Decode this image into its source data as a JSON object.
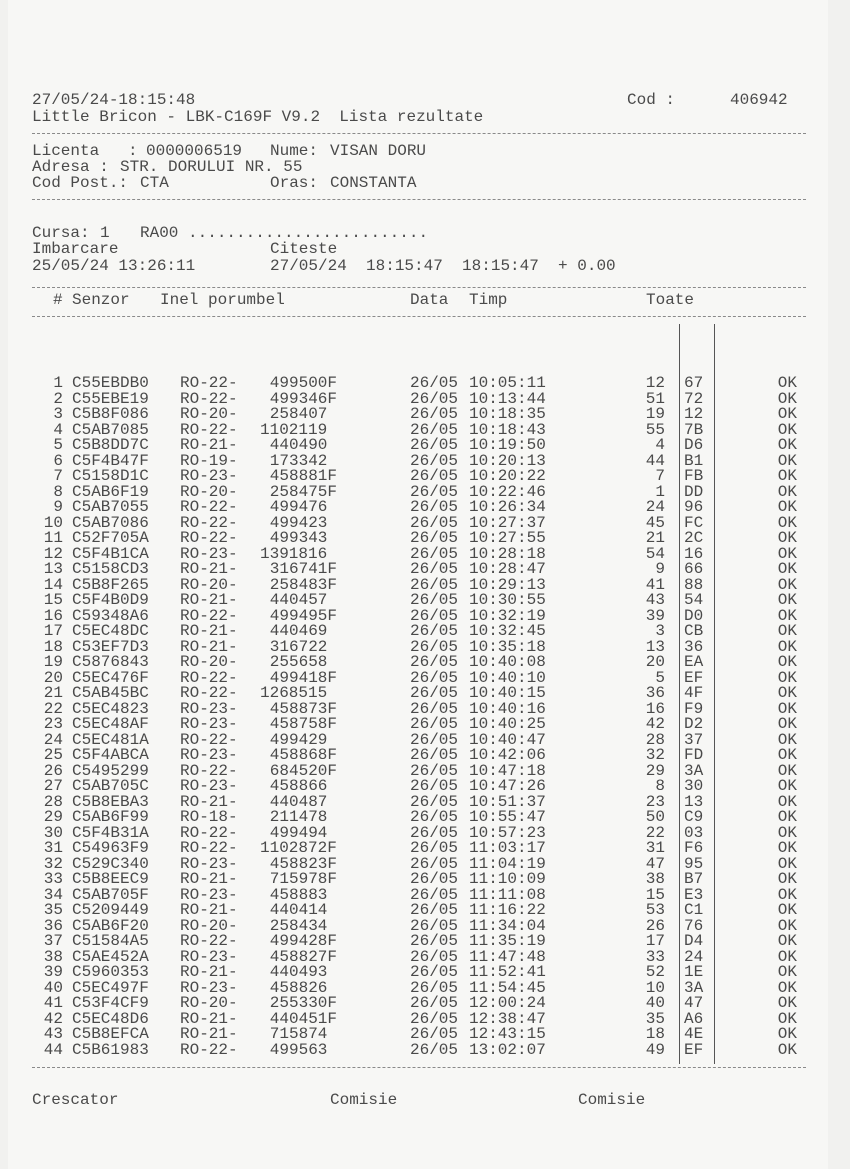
{
  "header": {
    "datetime": "27/05/24-18:15:48",
    "cod_label": "Cod :",
    "cod_value": "406942",
    "title": "Little Bricon - LBK-C169F V9.2  Lista rezultate"
  },
  "owner": {
    "licenta_label": "Licenta   :",
    "licenta": "0000006519",
    "nume_label": "Nume:",
    "nume": "VISAN DORU",
    "adresa_label": "Adresa :",
    "adresa": "STR. DORULUI NR. 55",
    "cod_post_label": "Cod Post.:",
    "cod_post": "CTA",
    "oras_label": "Oras:",
    "oras": "CONSTANTA"
  },
  "race": {
    "cursa_label": "Cursa:",
    "cursa": "1",
    "code": "RA00 .........................",
    "imbarcare_label": "Imbarcare",
    "citeste_label": "Citeste",
    "imbarcare": "25/05/24 13:26:11",
    "citeste": "27/05/24  18:15:47  18:15:47  + 0.00"
  },
  "table": {
    "headers": {
      "num": "#",
      "senzor": "Senzor",
      "inel": "Inel porumbel",
      "data": "Data",
      "timp": "Timp",
      "toate": "Toate"
    },
    "rows": [
      [
        "1",
        "C55EBDB0",
        "RO-22-",
        "499500F",
        "26/05",
        "10:05:11",
        "12",
        "67",
        "OK"
      ],
      [
        "2",
        "C55EBE19",
        "RO-22-",
        "499346F",
        "26/05",
        "10:13:44",
        "51",
        "72",
        "OK"
      ],
      [
        "3",
        "C5B8F086",
        "RO-20-",
        "258407",
        "26/05",
        "10:18:35",
        "19",
        "12",
        "OK"
      ],
      [
        "4",
        "C5AB7085",
        "RO-22-",
        "1102119",
        "26/05",
        "10:18:43",
        "55",
        "7B",
        "OK"
      ],
      [
        "5",
        "C5B8DD7C",
        "RO-21-",
        "440490",
        "26/05",
        "10:19:50",
        "4",
        "D6",
        "OK"
      ],
      [
        "6",
        "C5F4B47F",
        "RO-19-",
        "173342",
        "26/05",
        "10:20:13",
        "44",
        "B1",
        "OK"
      ],
      [
        "7",
        "C5158D1C",
        "RO-23-",
        "458881F",
        "26/05",
        "10:20:22",
        "7",
        "FB",
        "OK"
      ],
      [
        "8",
        "C5AB6F19",
        "RO-20-",
        "258475F",
        "26/05",
        "10:22:46",
        "1",
        "DD",
        "OK"
      ],
      [
        "9",
        "C5AB7055",
        "RO-22-",
        "499476",
        "26/05",
        "10:26:34",
        "24",
        "96",
        "OK"
      ],
      [
        "10",
        "C5AB7086",
        "RO-22-",
        "499423",
        "26/05",
        "10:27:37",
        "45",
        "FC",
        "OK"
      ],
      [
        "11",
        "C52F705A",
        "RO-22-",
        "499343",
        "26/05",
        "10:27:55",
        "21",
        "2C",
        "OK"
      ],
      [
        "12",
        "C5F4B1CA",
        "RO-23-",
        "1391816",
        "26/05",
        "10:28:18",
        "54",
        "16",
        "OK"
      ],
      [
        "13",
        "C5158CD3",
        "RO-21-",
        "316741F",
        "26/05",
        "10:28:47",
        "9",
        "66",
        "OK"
      ],
      [
        "14",
        "C5B8F265",
        "RO-20-",
        "258483F",
        "26/05",
        "10:29:13",
        "41",
        "88",
        "OK"
      ],
      [
        "15",
        "C5F4B0D9",
        "RO-21-",
        "440457",
        "26/05",
        "10:30:55",
        "43",
        "54",
        "OK"
      ],
      [
        "16",
        "C59348A6",
        "RO-22-",
        "499495F",
        "26/05",
        "10:32:19",
        "39",
        "D0",
        "OK"
      ],
      [
        "17",
        "C5EC48DC",
        "RO-21-",
        "440469",
        "26/05",
        "10:32:45",
        "3",
        "CB",
        "OK"
      ],
      [
        "18",
        "C53EF7D3",
        "RO-21-",
        "316722",
        "26/05",
        "10:35:18",
        "13",
        "36",
        "OK"
      ],
      [
        "19",
        "C5876843",
        "RO-20-",
        "255658",
        "26/05",
        "10:40:08",
        "20",
        "EA",
        "OK"
      ],
      [
        "20",
        "C5EC476F",
        "RO-22-",
        "499418F",
        "26/05",
        "10:40:10",
        "5",
        "EF",
        "OK"
      ],
      [
        "21",
        "C5AB45BC",
        "RO-22-",
        "1268515",
        "26/05",
        "10:40:15",
        "36",
        "4F",
        "OK"
      ],
      [
        "22",
        "C5EC4823",
        "RO-23-",
        "458873F",
        "26/05",
        "10:40:16",
        "16",
        "F9",
        "OK"
      ],
      [
        "23",
        "C5EC48AF",
        "RO-23-",
        "458758F",
        "26/05",
        "10:40:25",
        "42",
        "D2",
        "OK"
      ],
      [
        "24",
        "C5EC481A",
        "RO-22-",
        "499429",
        "26/05",
        "10:40:47",
        "28",
        "37",
        "OK"
      ],
      [
        "25",
        "C5F4ABCA",
        "RO-23-",
        "458868F",
        "26/05",
        "10:42:06",
        "32",
        "FD",
        "OK"
      ],
      [
        "26",
        "C5495299",
        "RO-22-",
        "684520F",
        "26/05",
        "10:47:18",
        "29",
        "3A",
        "OK"
      ],
      [
        "27",
        "C5AB705C",
        "RO-23-",
        "458866",
        "26/05",
        "10:47:26",
        "8",
        "30",
        "OK"
      ],
      [
        "28",
        "C5B8EBA3",
        "RO-21-",
        "440487",
        "26/05",
        "10:51:37",
        "23",
        "13",
        "OK"
      ],
      [
        "29",
        "C5AB6F99",
        "RO-18-",
        "211478",
        "26/05",
        "10:55:47",
        "50",
        "C9",
        "OK"
      ],
      [
        "30",
        "C5F4B31A",
        "RO-22-",
        "499494",
        "26/05",
        "10:57:23",
        "22",
        "03",
        "OK"
      ],
      [
        "31",
        "C54963F9",
        "RO-22-",
        "1102872F",
        "26/05",
        "11:03:17",
        "31",
        "F6",
        "OK"
      ],
      [
        "32",
        "C529C340",
        "RO-23-",
        "458823F",
        "26/05",
        "11:04:19",
        "47",
        "95",
        "OK"
      ],
      [
        "33",
        "C5B8EEC9",
        "RO-21-",
        "715978F",
        "26/05",
        "11:10:09",
        "38",
        "B7",
        "OK"
      ],
      [
        "34",
        "C5AB705F",
        "RO-23-",
        "458883",
        "26/05",
        "11:11:08",
        "15",
        "E3",
        "OK"
      ],
      [
        "35",
        "C5209449",
        "RO-21-",
        "440414",
        "26/05",
        "11:16:22",
        "53",
        "C1",
        "OK"
      ],
      [
        "36",
        "C5AB6F20",
        "RO-20-",
        "258434",
        "26/05",
        "11:34:04",
        "26",
        "76",
        "OK"
      ],
      [
        "37",
        "C51584A5",
        "RO-22-",
        "499428F",
        "26/05",
        "11:35:19",
        "17",
        "D4",
        "OK"
      ],
      [
        "38",
        "C5AE452A",
        "RO-23-",
        "458827F",
        "26/05",
        "11:47:48",
        "33",
        "24",
        "OK"
      ],
      [
        "39",
        "C5960353",
        "RO-21-",
        "440493",
        "26/05",
        "11:52:41",
        "52",
        "1E",
        "OK"
      ],
      [
        "40",
        "C5EC497F",
        "RO-23-",
        "458826",
        "26/05",
        "11:54:45",
        "10",
        "3A",
        "OK"
      ],
      [
        "41",
        "C53F4CF9",
        "RO-20-",
        "255330F",
        "26/05",
        "12:00:24",
        "40",
        "47",
        "OK"
      ],
      [
        "42",
        "C5EC48D6",
        "RO-21-",
        "440451F",
        "26/05",
        "12:38:47",
        "35",
        "A6",
        "OK"
      ],
      [
        "43",
        "C5B8EFCA",
        "RO-21-",
        "715874",
        "26/05",
        "12:43:15",
        "18",
        "4E",
        "OK"
      ],
      [
        "44",
        "C5B61983",
        "RO-22-",
        "499563",
        "26/05",
        "13:02:07",
        "49",
        "EF",
        "OK"
      ]
    ]
  },
  "footer": {
    "crescator": "Crescator",
    "comisie_1": "Comisie",
    "comisie_2": "Comisie"
  }
}
